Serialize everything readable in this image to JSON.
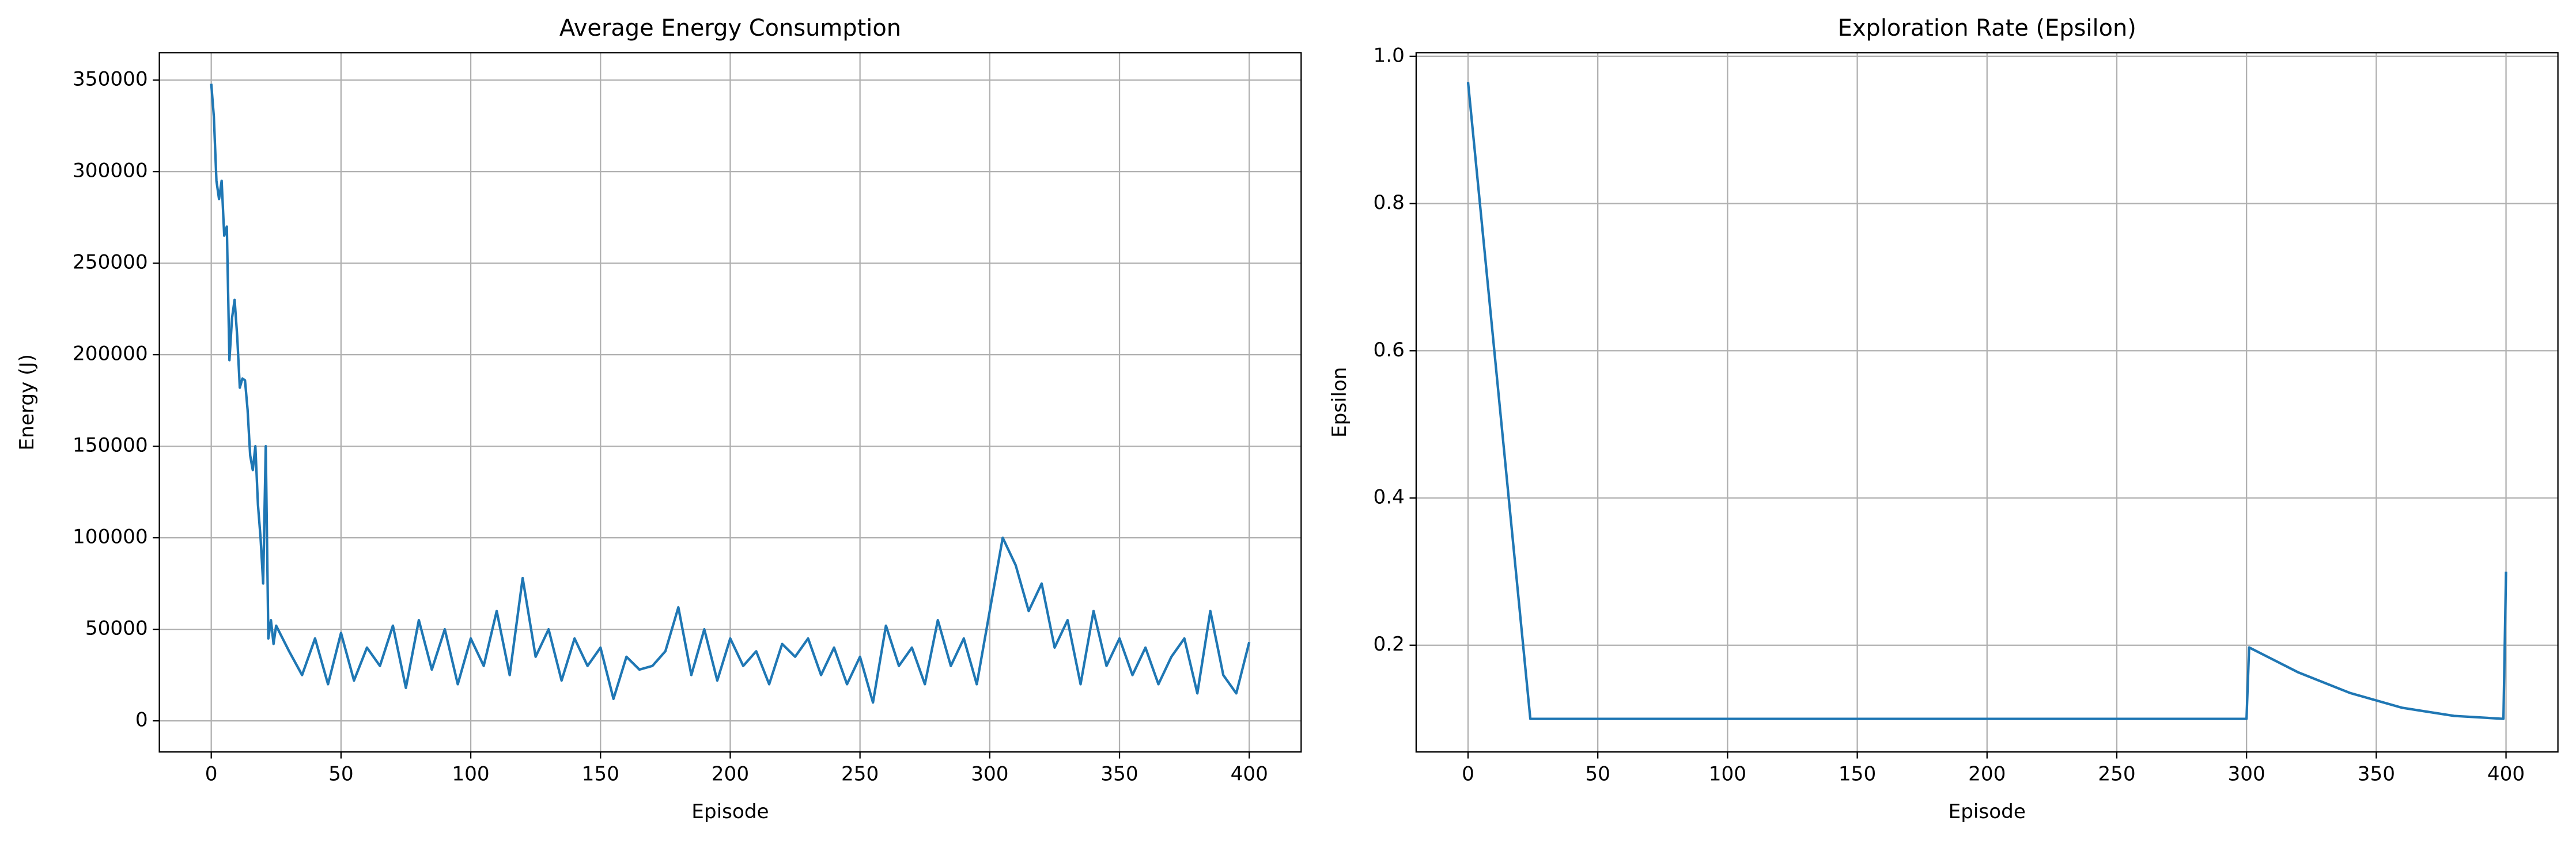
{
  "chart_data": [
    {
      "type": "line",
      "title": "Average Energy Consumption",
      "xlabel": "Episode",
      "ylabel": "Energy (J)",
      "color": "#1f77b4",
      "grid": true,
      "x": [
        0,
        1,
        2,
        3,
        4,
        5,
        6,
        7,
        8,
        9,
        10,
        11,
        12,
        13,
        14,
        15,
        16,
        17,
        18,
        19,
        20,
        21,
        22,
        23,
        24,
        25,
        30,
        35,
        40,
        45,
        50,
        55,
        60,
        65,
        70,
        75,
        80,
        85,
        90,
        95,
        100,
        105,
        110,
        115,
        120,
        125,
        130,
        135,
        140,
        145,
        150,
        155,
        160,
        165,
        170,
        175,
        180,
        185,
        190,
        195,
        200,
        205,
        210,
        215,
        220,
        225,
        230,
        235,
        240,
        245,
        250,
        255,
        260,
        265,
        270,
        275,
        280,
        285,
        290,
        295,
        300,
        305,
        310,
        315,
        320,
        325,
        330,
        335,
        340,
        345,
        350,
        355,
        360,
        365,
        370,
        375,
        380,
        385,
        390,
        395,
        400
      ],
      "values": [
        348000,
        330000,
        295000,
        285000,
        295000,
        265000,
        270000,
        197000,
        220000,
        230000,
        210000,
        182000,
        187000,
        186000,
        170000,
        145000,
        137000,
        150000,
        118000,
        100000,
        75000,
        150000,
        45000,
        55000,
        42000,
        52000,
        38000,
        25000,
        45000,
        20000,
        48000,
        22000,
        40000,
        30000,
        52000,
        18000,
        55000,
        28000,
        50000,
        20000,
        45000,
        30000,
        60000,
        25000,
        78000,
        35000,
        50000,
        22000,
        45000,
        30000,
        40000,
        12000,
        35000,
        28000,
        30000,
        38000,
        62000,
        25000,
        50000,
        22000,
        45000,
        30000,
        38000,
        20000,
        42000,
        35000,
        45000,
        25000,
        40000,
        20000,
        35000,
        10000,
        52000,
        30000,
        40000,
        20000,
        55000,
        30000,
        45000,
        20000,
        60000,
        100000,
        85000,
        60000,
        75000,
        40000,
        55000,
        20000,
        60000,
        30000,
        45000,
        25000,
        40000,
        20000,
        35000,
        45000,
        15000,
        60000,
        25000,
        15000,
        43000
      ],
      "xlim": [
        -20,
        420
      ],
      "xticks": [
        0,
        50,
        100,
        150,
        200,
        250,
        300,
        350,
        400
      ],
      "ylim": [
        -17000,
        365000
      ],
      "yticks": [
        0,
        50000,
        100000,
        150000,
        200000,
        250000,
        300000,
        350000
      ]
    },
    {
      "type": "line",
      "title": "Exploration Rate (Epsilon)",
      "xlabel": "Episode",
      "ylabel": "Epsilon",
      "color": "#1f77b4",
      "grid": true,
      "x": [
        0,
        24,
        300,
        301,
        320,
        340,
        360,
        380,
        399,
        400
      ],
      "values": [
        0.965,
        0.1,
        0.1,
        0.197,
        0.163,
        0.135,
        0.115,
        0.104,
        0.1,
        0.3
      ],
      "xlim": [
        -20,
        420
      ],
      "xticks": [
        0,
        50,
        100,
        150,
        200,
        250,
        300,
        350,
        400
      ],
      "ylim": [
        0.055,
        1.005
      ],
      "yticks": [
        0.2,
        0.4,
        0.6,
        0.8,
        {
          "value": 1,
          "label": "1.0"
        }
      ]
    }
  ]
}
